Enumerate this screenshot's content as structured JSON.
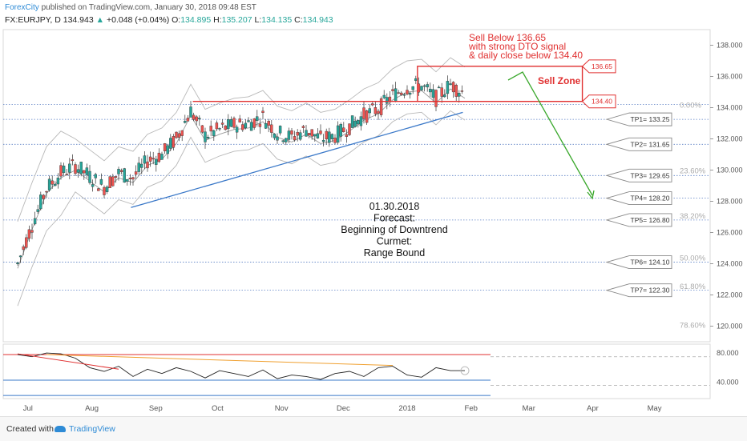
{
  "header": {
    "publisher": "ForexCity",
    "published_text": "published on TradingView.com, January 30, 2018 09:48 EST",
    "symbol": "FX:EURJPY, D",
    "last": "134.943",
    "change": "+0.048 (+0.04%)",
    "open_label": "O:",
    "open": "134.895",
    "high_label": "H:",
    "high": "135.207",
    "low_label": "L:",
    "low": "134.135",
    "close_label": "C:",
    "close": "134.943"
  },
  "footer": {
    "created": "Created with",
    "brand": "TradingView"
  },
  "colors": {
    "up": "#26a69a",
    "down": "#ef5350",
    "zone": "#e03030",
    "trend": "#3a78c8",
    "arrow": "#3aa82c",
    "tp": "#5a7fc4",
    "osc": "#222222"
  },
  "chart_data": [
    {
      "type": "candlestick",
      "symbol": "FX:EURJPY",
      "interval": "D",
      "y_range": [
        119.0,
        139.0
      ],
      "y_ticks": [
        "138.000",
        "136.000",
        "134.000",
        "132.000",
        "130.000",
        "128.000",
        "126.000",
        "124.000",
        "122.000",
        "120.000"
      ],
      "x_labels": [
        "Jul",
        "Aug",
        "Sep",
        "Oct",
        "Nov",
        "Dec",
        "2018",
        "Feb",
        "Mar",
        "Apr",
        "May"
      ],
      "close_path": [
        [
          "2017-06-26",
          124.0
        ],
        [
          "2017-07-03",
          126.5
        ],
        [
          "2017-07-10",
          128.8
        ],
        [
          "2017-07-17",
          129.8
        ],
        [
          "2017-07-24",
          130.3
        ],
        [
          "2017-07-31",
          129.6
        ],
        [
          "2017-08-07",
          128.9
        ],
        [
          "2017-08-14",
          129.8
        ],
        [
          "2017-08-21",
          129.5
        ],
        [
          "2017-08-28",
          130.6
        ],
        [
          "2017-09-04",
          131.0
        ],
        [
          "2017-09-11",
          132.0
        ],
        [
          "2017-09-18",
          133.8
        ],
        [
          "2017-09-25",
          132.2
        ],
        [
          "2017-10-02",
          132.6
        ],
        [
          "2017-10-09",
          132.9
        ],
        [
          "2017-10-16",
          133.0
        ],
        [
          "2017-10-23",
          133.4
        ],
        [
          "2017-10-30",
          132.4
        ],
        [
          "2017-11-06",
          132.1
        ],
        [
          "2017-11-13",
          132.6
        ],
        [
          "2017-11-20",
          132.0
        ],
        [
          "2017-11-27",
          132.2
        ],
        [
          "2017-12-04",
          132.8
        ],
        [
          "2017-12-11",
          133.5
        ],
        [
          "2017-12-18",
          133.9
        ],
        [
          "2017-12-25",
          134.8
        ],
        [
          "2018-01-01",
          135.3
        ],
        [
          "2018-01-08",
          135.4
        ],
        [
          "2018-01-15",
          134.6
        ],
        [
          "2018-01-22",
          135.5
        ],
        [
          "2018-01-29",
          134.9
        ]
      ],
      "sell_zone": {
        "label": "Sell Zone",
        "upper": "136.65",
        "lower": "134.40"
      },
      "fib_levels": [
        "0.00%",
        "23.60%",
        "38.20%",
        "50.00%",
        "61.80%",
        "78.60%"
      ],
      "targets": [
        "TP1= 133.25",
        "TP2= 131.65",
        "TP3= 129.65",
        "TP4= 128.20",
        "TP5= 126.80",
        "TP6= 124.10",
        "TP7= 122.30"
      ],
      "annotations": {
        "sell_note": [
          "Sell Below 136.65",
          "with strong DTO signal",
          "& daily close below 134.40"
        ],
        "forecast": [
          "01.30.2018",
          "Forecast:",
          "Beginning of Downtrend",
          "Curmet:",
          "Range Bound"
        ]
      }
    },
    {
      "type": "line",
      "name": "oscillator",
      "y_ticks": [
        "80.000",
        "40.000"
      ],
      "values": [
        78,
        75,
        80,
        79,
        73,
        60,
        55,
        62,
        48,
        58,
        52,
        60,
        55,
        46,
        56,
        52,
        48,
        57,
        45,
        50,
        48,
        44,
        52,
        55,
        48,
        60,
        62,
        50,
        47,
        60,
        56,
        56
      ]
    }
  ]
}
